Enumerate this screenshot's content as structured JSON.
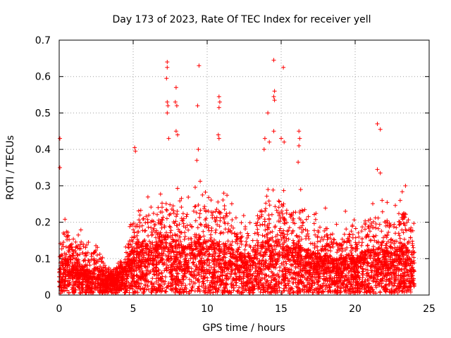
{
  "chart_data": {
    "type": "scatter",
    "title": "Day 173 of 2023, Rate Of TEC Index for receiver yell",
    "xlabel": "GPS time / hours",
    "ylabel": "ROTI / TECUs",
    "xlim": [
      0,
      25
    ],
    "ylim": [
      0,
      0.7
    ],
    "x_ticks": [
      "0",
      "5",
      "10",
      "15",
      "20",
      "25"
    ],
    "y_ticks": [
      "0",
      "0.1",
      "0.2",
      "0.3",
      "0.4",
      "0.5",
      "0.6",
      "0.7"
    ],
    "grid": true,
    "marker": "+",
    "color": "#ff0000",
    "x_range_observed": [
      0,
      24
    ],
    "envelope": {
      "hours": [
        0,
        0.3,
        0.6,
        1,
        1.5,
        2,
        2.5,
        3,
        3.5,
        4,
        4.5,
        5,
        5.5,
        6,
        6.5,
        7,
        7.5,
        8,
        8.5,
        9,
        9.5,
        10,
        10.5,
        11,
        11.5,
        12,
        12.5,
        13,
        13.5,
        14,
        14.5,
        15,
        15.5,
        16,
        16.5,
        17,
        17.5,
        18,
        18.5,
        19,
        19.5,
        20,
        20.5,
        21,
        21.5,
        22,
        22.5,
        23,
        23.5,
        24
      ],
      "upper": [
        0.12,
        0.22,
        0.23,
        0.16,
        0.19,
        0.15,
        0.18,
        0.12,
        0.08,
        0.1,
        0.15,
        0.26,
        0.25,
        0.28,
        0.25,
        0.35,
        0.33,
        0.3,
        0.28,
        0.3,
        0.35,
        0.32,
        0.3,
        0.3,
        0.3,
        0.22,
        0.25,
        0.2,
        0.3,
        0.35,
        0.3,
        0.35,
        0.28,
        0.3,
        0.3,
        0.22,
        0.23,
        0.25,
        0.2,
        0.2,
        0.26,
        0.2,
        0.26,
        0.27,
        0.25,
        0.27,
        0.24,
        0.3,
        0.28,
        0.2
      ],
      "median": [
        0.05,
        0.06,
        0.06,
        0.05,
        0.05,
        0.04,
        0.045,
        0.035,
        0.03,
        0.035,
        0.05,
        0.08,
        0.09,
        0.09,
        0.08,
        0.1,
        0.1,
        0.09,
        0.08,
        0.09,
        0.1,
        0.09,
        0.09,
        0.08,
        0.08,
        0.07,
        0.07,
        0.06,
        0.08,
        0.1,
        0.09,
        0.1,
        0.08,
        0.09,
        0.08,
        0.07,
        0.07,
        0.07,
        0.06,
        0.06,
        0.07,
        0.06,
        0.07,
        0.08,
        0.07,
        0.08,
        0.07,
        0.08,
        0.08,
        0.06
      ]
    },
    "outliers": [
      {
        "x": 0.05,
        "y": 0.43
      },
      {
        "x": 0.05,
        "y": 0.35
      },
      {
        "x": 5.1,
        "y": 0.405
      },
      {
        "x": 5.15,
        "y": 0.395
      },
      {
        "x": 7.3,
        "y": 0.64
      },
      {
        "x": 7.3,
        "y": 0.625
      },
      {
        "x": 7.25,
        "y": 0.595
      },
      {
        "x": 7.3,
        "y": 0.53
      },
      {
        "x": 7.35,
        "y": 0.52
      },
      {
        "x": 7.3,
        "y": 0.5
      },
      {
        "x": 7.4,
        "y": 0.43
      },
      {
        "x": 7.9,
        "y": 0.57
      },
      {
        "x": 7.85,
        "y": 0.53
      },
      {
        "x": 7.95,
        "y": 0.52
      },
      {
        "x": 7.9,
        "y": 0.45
      },
      {
        "x": 8.0,
        "y": 0.44
      },
      {
        "x": 9.35,
        "y": 0.52
      },
      {
        "x": 9.45,
        "y": 0.63
      },
      {
        "x": 9.4,
        "y": 0.4
      },
      {
        "x": 9.3,
        "y": 0.37
      },
      {
        "x": 10.8,
        "y": 0.545
      },
      {
        "x": 10.85,
        "y": 0.53
      },
      {
        "x": 10.8,
        "y": 0.515
      },
      {
        "x": 10.75,
        "y": 0.44
      },
      {
        "x": 10.8,
        "y": 0.43
      },
      {
        "x": 13.9,
        "y": 0.43
      },
      {
        "x": 13.85,
        "y": 0.4
      },
      {
        "x": 14.1,
        "y": 0.5
      },
      {
        "x": 14.2,
        "y": 0.42
      },
      {
        "x": 14.5,
        "y": 0.645
      },
      {
        "x": 14.55,
        "y": 0.56
      },
      {
        "x": 14.5,
        "y": 0.545
      },
      {
        "x": 14.55,
        "y": 0.535
      },
      {
        "x": 14.5,
        "y": 0.45
      },
      {
        "x": 15.0,
        "y": 0.43
      },
      {
        "x": 15.15,
        "y": 0.625
      },
      {
        "x": 15.2,
        "y": 0.42
      },
      {
        "x": 16.2,
        "y": 0.45
      },
      {
        "x": 16.25,
        "y": 0.43
      },
      {
        "x": 16.2,
        "y": 0.41
      },
      {
        "x": 16.15,
        "y": 0.365
      },
      {
        "x": 21.5,
        "y": 0.47
      },
      {
        "x": 21.7,
        "y": 0.455
      },
      {
        "x": 21.5,
        "y": 0.345
      },
      {
        "x": 21.7,
        "y": 0.335
      },
      {
        "x": 23.4,
        "y": 0.3
      }
    ]
  }
}
